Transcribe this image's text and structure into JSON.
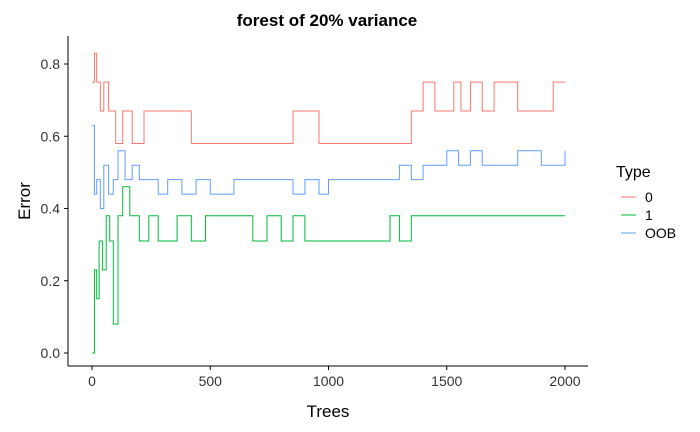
{
  "chart_data": {
    "type": "line",
    "title": "forest of 20% variance",
    "xlabel": "Trees",
    "ylabel": "Error",
    "xlim": [
      0,
      2000
    ],
    "ylim": [
      0,
      0.85
    ],
    "x_ticks": [
      0,
      500,
      1000,
      1500,
      2000
    ],
    "x_tick_labels": [
      "0",
      "500",
      "1000",
      "1500",
      "2000"
    ],
    "y_ticks": [
      0.0,
      0.2,
      0.4,
      0.6,
      0.8
    ],
    "y_tick_labels": [
      "0.0",
      "0.2",
      "0.4",
      "0.6",
      "0.8"
    ],
    "grid": false,
    "legend": {
      "title": "Type",
      "position": "right"
    },
    "series": [
      {
        "name": "0",
        "color": "#F8766D",
        "x": [
          1,
          10,
          20,
          35,
          50,
          70,
          100,
          130,
          170,
          220,
          270,
          320,
          380,
          420,
          480,
          520,
          600,
          700,
          780,
          850,
          900,
          960,
          1000,
          1100,
          1200,
          1250,
          1300,
          1350,
          1400,
          1450,
          1500,
          1530,
          1560,
          1600,
          1650,
          1700,
          1750,
          1800,
          1850,
          1900,
          1950,
          2000
        ],
        "y": [
          0.75,
          0.83,
          0.75,
          0.67,
          0.75,
          0.67,
          0.58,
          0.67,
          0.58,
          0.67,
          0.67,
          0.67,
          0.67,
          0.58,
          0.58,
          0.58,
          0.58,
          0.58,
          0.58,
          0.67,
          0.67,
          0.58,
          0.58,
          0.58,
          0.58,
          0.58,
          0.58,
          0.67,
          0.75,
          0.67,
          0.67,
          0.75,
          0.67,
          0.75,
          0.67,
          0.75,
          0.75,
          0.67,
          0.67,
          0.67,
          0.75,
          0.75
        ]
      },
      {
        "name": "1",
        "color": "#00BA38",
        "x": [
          1,
          10,
          20,
          30,
          45,
          60,
          75,
          90,
          110,
          130,
          160,
          200,
          240,
          280,
          320,
          360,
          420,
          480,
          520,
          600,
          680,
          740,
          800,
          850,
          900,
          960,
          1000,
          1100,
          1200,
          1260,
          1300,
          1350,
          1400,
          1500,
          1600,
          1700,
          1800,
          1900,
          2000
        ],
        "y": [
          0.0,
          0.23,
          0.15,
          0.31,
          0.23,
          0.38,
          0.31,
          0.08,
          0.38,
          0.46,
          0.38,
          0.31,
          0.38,
          0.31,
          0.31,
          0.38,
          0.31,
          0.38,
          0.38,
          0.38,
          0.31,
          0.38,
          0.31,
          0.38,
          0.31,
          0.31,
          0.31,
          0.31,
          0.31,
          0.38,
          0.31,
          0.38,
          0.38,
          0.38,
          0.38,
          0.38,
          0.38,
          0.38,
          0.38
        ]
      },
      {
        "name": "OOB",
        "color": "#619CFF",
        "x": [
          1,
          10,
          20,
          35,
          50,
          70,
          90,
          110,
          140,
          170,
          200,
          240,
          280,
          320,
          380,
          440,
          500,
          600,
          700,
          800,
          850,
          900,
          960,
          1000,
          1100,
          1200,
          1250,
          1300,
          1350,
          1400,
          1450,
          1500,
          1550,
          1600,
          1650,
          1700,
          1800,
          1900,
          2000
        ],
        "y": [
          0.63,
          0.44,
          0.48,
          0.4,
          0.52,
          0.44,
          0.48,
          0.56,
          0.48,
          0.52,
          0.48,
          0.48,
          0.44,
          0.48,
          0.44,
          0.48,
          0.44,
          0.48,
          0.48,
          0.48,
          0.44,
          0.48,
          0.44,
          0.48,
          0.48,
          0.48,
          0.48,
          0.52,
          0.48,
          0.52,
          0.52,
          0.56,
          0.52,
          0.56,
          0.52,
          0.52,
          0.56,
          0.52,
          0.56
        ]
      }
    ]
  }
}
